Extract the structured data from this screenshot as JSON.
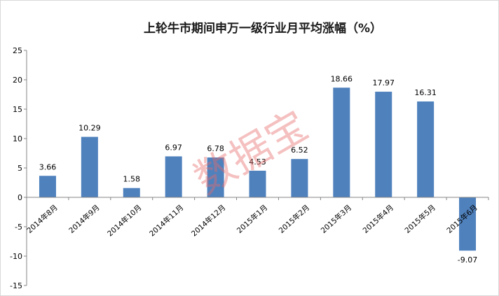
{
  "chart_data": {
    "type": "bar",
    "title": "上轮牛市期间申万一级行业月平均涨幅（%）",
    "xlabel": "",
    "ylabel": "",
    "categories": [
      "2014年8月",
      "2014年9月",
      "2014年10月",
      "2014年11月",
      "2014年12月",
      "2015年1月",
      "2015年2月",
      "2015年3月",
      "2015年4月",
      "2015年5月",
      "2015年6月"
    ],
    "values": [
      3.66,
      10.29,
      1.58,
      6.97,
      6.78,
      4.53,
      6.52,
      18.66,
      17.97,
      16.31,
      -9.07
    ],
    "value_labels": [
      "3.66",
      "10.29",
      "1.58",
      "6.97",
      "6.78",
      "4.53",
      "6.52",
      "18.66",
      "17.97",
      "16.31",
      "-9.07"
    ],
    "ylim": [
      -15,
      25
    ],
    "yticks": [
      25,
      20,
      15,
      10,
      5,
      0,
      -5,
      -10,
      -15
    ],
    "grid": false,
    "legend": "none",
    "bar_color": "#4f81bd",
    "watermark": "数据宝",
    "watermark_color": "#e86b6b"
  }
}
